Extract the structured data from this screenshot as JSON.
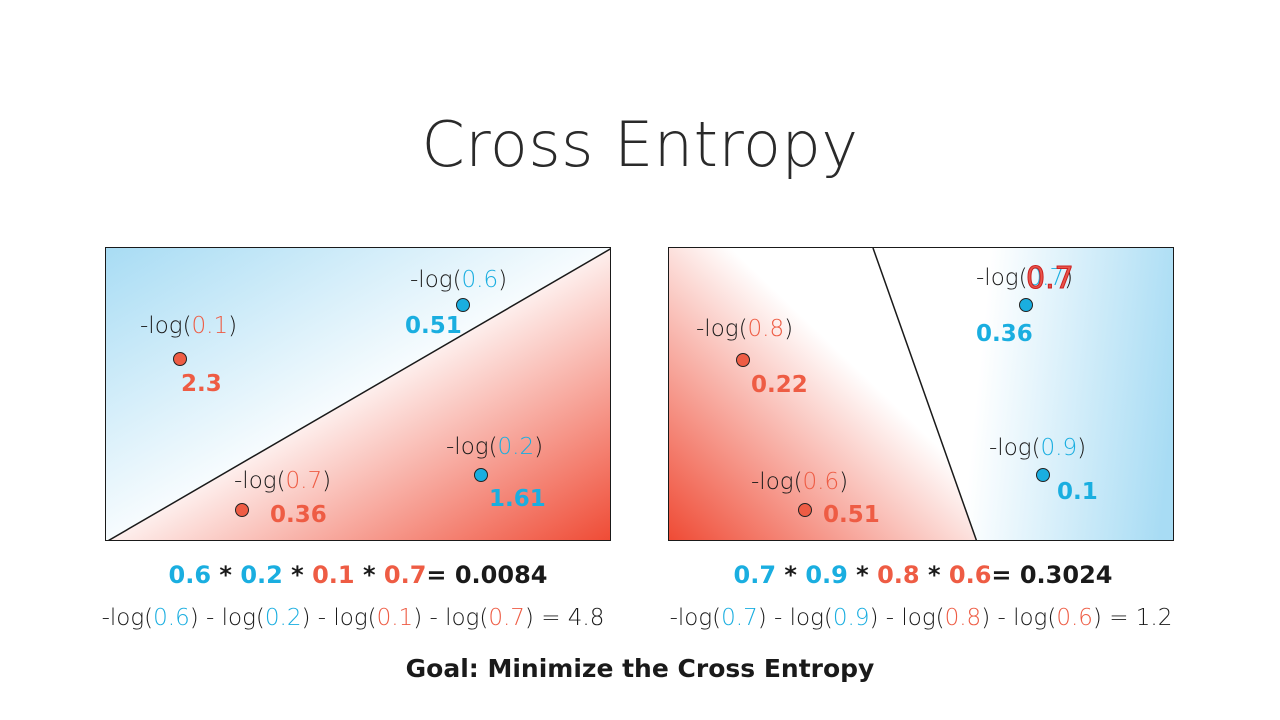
{
  "title": "Cross Entropy",
  "colors": {
    "blue": "#1aaee0",
    "red": "#ee5c44",
    "dark": "#1a1a1a"
  },
  "left_panel": {
    "points": [
      {
        "prob": "0.1",
        "loss": "2.3",
        "color": "red"
      },
      {
        "prob": "0.6",
        "loss": "0.51",
        "color": "blue"
      },
      {
        "prob": "0.7",
        "loss": "0.36",
        "color": "red"
      },
      {
        "prob": "0.2",
        "loss": "1.61",
        "color": "blue"
      }
    ],
    "product": {
      "terms": [
        "0.6",
        "0.2",
        "0.1",
        "0.7"
      ],
      "result": "= 0.0084"
    },
    "sum_result": "= 4.8"
  },
  "right_panel": {
    "points": [
      {
        "prob": "0.8",
        "loss": "0.22",
        "color": "red"
      },
      {
        "prob": "0.7",
        "loss": "0.36",
        "color": "blue",
        "overlay": "0.7"
      },
      {
        "prob": "0.6",
        "loss": "0.51",
        "color": "red"
      },
      {
        "prob": "0.9",
        "loss": "0.1",
        "color": "blue"
      }
    ],
    "product": {
      "terms": [
        "0.7",
        "0.9",
        "0.8",
        "0.6"
      ],
      "result": "= 0.3024"
    },
    "sum_result": "= 1.2"
  },
  "text": {
    "log_open": "-log(",
    "close": ")",
    "minus_log": " - log(",
    "times": " * "
  },
  "goal": "Goal: Minimize the Cross Entropy"
}
